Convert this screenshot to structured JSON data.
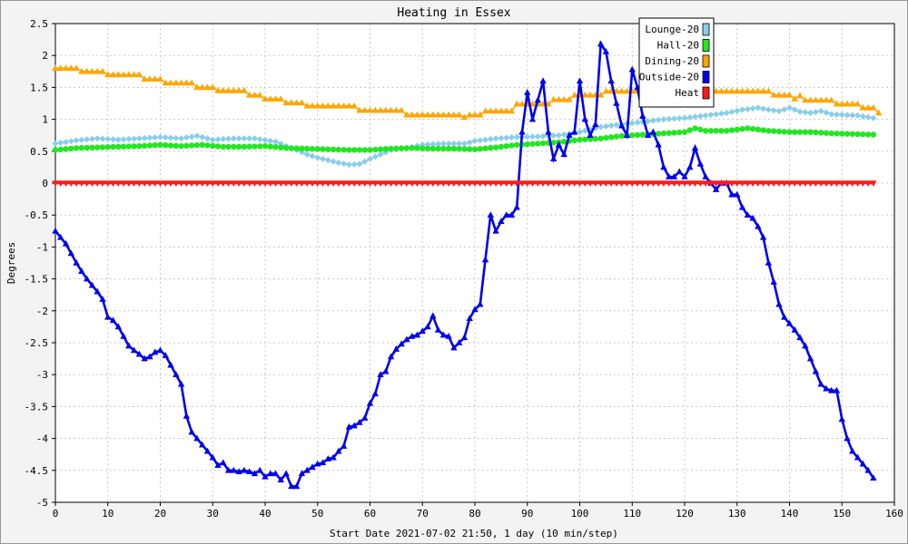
{
  "chart_data": {
    "type": "line",
    "title": "Heating in Essex",
    "xlabel": "Start Date 2021-07-02 21:50, 1 day (10 min/step)",
    "ylabel": "Degrees",
    "xlim": [
      0,
      160
    ],
    "ylim": [
      -5,
      2.5
    ],
    "x_ticks": [
      0,
      10,
      20,
      30,
      40,
      50,
      60,
      70,
      80,
      90,
      100,
      110,
      120,
      130,
      140,
      150,
      160
    ],
    "y_ticks": [
      -5,
      -4.5,
      -4,
      -3.5,
      -3,
      -2.5,
      -2,
      -1.5,
      -1,
      -0.5,
      0,
      0.5,
      1,
      1.5,
      2,
      2.5
    ],
    "grid": true,
    "legend_position": "top-right",
    "series": [
      {
        "name": "Lounge-20",
        "color": "#87ceeb",
        "marker": "diamond",
        "points": [
          [
            0,
            0.62
          ],
          [
            4,
            0.67
          ],
          [
            8,
            0.7
          ],
          [
            12,
            0.68
          ],
          [
            16,
            0.7
          ],
          [
            20,
            0.72
          ],
          [
            24,
            0.7
          ],
          [
            27,
            0.74
          ],
          [
            30,
            0.68
          ],
          [
            34,
            0.7
          ],
          [
            38,
            0.7
          ],
          [
            42,
            0.65
          ],
          [
            44,
            0.58
          ],
          [
            46,
            0.52
          ],
          [
            48,
            0.45
          ],
          [
            50,
            0.4
          ],
          [
            52,
            0.36
          ],
          [
            54,
            0.32
          ],
          [
            56,
            0.29
          ],
          [
            58,
            0.3
          ],
          [
            60,
            0.38
          ],
          [
            62,
            0.45
          ],
          [
            64,
            0.52
          ],
          [
            67,
            0.55
          ],
          [
            70,
            0.6
          ],
          [
            74,
            0.62
          ],
          [
            78,
            0.62
          ],
          [
            80,
            0.66
          ],
          [
            84,
            0.7
          ],
          [
            88,
            0.72
          ],
          [
            92,
            0.73
          ],
          [
            96,
            0.75
          ],
          [
            100,
            0.8
          ],
          [
            104,
            0.88
          ],
          [
            108,
            0.92
          ],
          [
            112,
            0.96
          ],
          [
            116,
            1.0
          ],
          [
            120,
            1.02
          ],
          [
            124,
            1.06
          ],
          [
            128,
            1.1
          ],
          [
            131,
            1.15
          ],
          [
            134,
            1.18
          ],
          [
            136,
            1.15
          ],
          [
            138,
            1.13
          ],
          [
            140,
            1.18
          ],
          [
            142,
            1.12
          ],
          [
            144,
            1.1
          ],
          [
            146,
            1.13
          ],
          [
            148,
            1.08
          ],
          [
            150,
            1.07
          ],
          [
            153,
            1.06
          ],
          [
            156,
            1.02
          ]
        ]
      },
      {
        "name": "Hall-20",
        "color": "#22e622",
        "marker": "circle",
        "points": [
          [
            0,
            0.52
          ],
          [
            4,
            0.55
          ],
          [
            8,
            0.56
          ],
          [
            12,
            0.57
          ],
          [
            16,
            0.58
          ],
          [
            20,
            0.6
          ],
          [
            24,
            0.58
          ],
          [
            28,
            0.6
          ],
          [
            32,
            0.57
          ],
          [
            36,
            0.57
          ],
          [
            40,
            0.58
          ],
          [
            44,
            0.55
          ],
          [
            48,
            0.54
          ],
          [
            52,
            0.53
          ],
          [
            56,
            0.52
          ],
          [
            60,
            0.52
          ],
          [
            64,
            0.54
          ],
          [
            68,
            0.55
          ],
          [
            72,
            0.54
          ],
          [
            76,
            0.54
          ],
          [
            80,
            0.53
          ],
          [
            84,
            0.56
          ],
          [
            88,
            0.6
          ],
          [
            92,
            0.62
          ],
          [
            96,
            0.64
          ],
          [
            100,
            0.68
          ],
          [
            104,
            0.7
          ],
          [
            108,
            0.74
          ],
          [
            112,
            0.76
          ],
          [
            116,
            0.78
          ],
          [
            120,
            0.8
          ],
          [
            122,
            0.86
          ],
          [
            124,
            0.82
          ],
          [
            128,
            0.82
          ],
          [
            132,
            0.86
          ],
          [
            136,
            0.82
          ],
          [
            140,
            0.8
          ],
          [
            144,
            0.8
          ],
          [
            148,
            0.78
          ],
          [
            152,
            0.77
          ],
          [
            156,
            0.76
          ]
        ]
      },
      {
        "name": "Dining-20",
        "color": "#ffa500",
        "marker": "triangle",
        "points": [
          [
            0,
            1.8
          ],
          [
            4,
            1.8
          ],
          [
            5,
            1.75
          ],
          [
            9,
            1.75
          ],
          [
            10,
            1.7
          ],
          [
            16,
            1.7
          ],
          [
            17,
            1.63
          ],
          [
            20,
            1.63
          ],
          [
            21,
            1.57
          ],
          [
            26,
            1.57
          ],
          [
            27,
            1.5
          ],
          [
            30,
            1.5
          ],
          [
            31,
            1.45
          ],
          [
            36,
            1.45
          ],
          [
            37,
            1.38
          ],
          [
            39,
            1.38
          ],
          [
            40,
            1.32
          ],
          [
            43,
            1.32
          ],
          [
            44,
            1.26
          ],
          [
            47,
            1.26
          ],
          [
            48,
            1.21
          ],
          [
            57,
            1.21
          ],
          [
            58,
            1.14
          ],
          [
            66,
            1.14
          ],
          [
            67,
            1.07
          ],
          [
            77,
            1.07
          ],
          [
            78,
            1.03
          ],
          [
            79,
            1.07
          ],
          [
            81,
            1.07
          ],
          [
            82,
            1.13
          ],
          [
            87,
            1.13
          ],
          [
            88,
            1.24
          ],
          [
            94,
            1.24
          ],
          [
            95,
            1.31
          ],
          [
            98,
            1.31
          ],
          [
            99,
            1.38
          ],
          [
            104,
            1.38
          ],
          [
            105,
            1.44
          ],
          [
            125,
            1.44
          ],
          [
            126,
            1.44
          ],
          [
            136,
            1.44
          ],
          [
            137,
            1.38
          ],
          [
            140,
            1.38
          ],
          [
            141,
            1.32
          ],
          [
            142,
            1.37
          ],
          [
            143,
            1.3
          ],
          [
            148,
            1.3
          ],
          [
            149,
            1.24
          ],
          [
            153,
            1.24
          ],
          [
            154,
            1.18
          ],
          [
            156,
            1.18
          ],
          [
            157,
            1.1
          ]
        ]
      },
      {
        "name": "Outside-20",
        "color": "#0000ee",
        "marker": "triangle",
        "points": [
          [
            0,
            -0.75
          ],
          [
            1,
            -0.85
          ],
          [
            2,
            -0.95
          ],
          [
            3,
            -1.1
          ],
          [
            4,
            -1.25
          ],
          [
            5,
            -1.38
          ],
          [
            6,
            -1.5
          ],
          [
            7,
            -1.6
          ],
          [
            8,
            -1.7
          ],
          [
            9,
            -1.82
          ],
          [
            10,
            -2.1
          ],
          [
            11,
            -2.15
          ],
          [
            12,
            -2.25
          ],
          [
            13,
            -2.4
          ],
          [
            14,
            -2.55
          ],
          [
            15,
            -2.62
          ],
          [
            16,
            -2.68
          ],
          [
            17,
            -2.75
          ],
          [
            18,
            -2.72
          ],
          [
            19,
            -2.65
          ],
          [
            20,
            -2.62
          ],
          [
            21,
            -2.7
          ],
          [
            22,
            -2.85
          ],
          [
            23,
            -3.0
          ],
          [
            24,
            -3.15
          ],
          [
            25,
            -3.65
          ],
          [
            26,
            -3.9
          ],
          [
            27,
            -4.0
          ],
          [
            28,
            -4.1
          ],
          [
            29,
            -4.2
          ],
          [
            30,
            -4.3
          ],
          [
            31,
            -4.42
          ],
          [
            32,
            -4.38
          ],
          [
            33,
            -4.5
          ],
          [
            34,
            -4.5
          ],
          [
            35,
            -4.52
          ],
          [
            36,
            -4.5
          ],
          [
            37,
            -4.52
          ],
          [
            38,
            -4.55
          ],
          [
            39,
            -4.5
          ],
          [
            40,
            -4.6
          ],
          [
            41,
            -4.55
          ],
          [
            42,
            -4.55
          ],
          [
            43,
            -4.65
          ],
          [
            44,
            -4.55
          ],
          [
            45,
            -4.75
          ],
          [
            46,
            -4.75
          ],
          [
            47,
            -4.55
          ],
          [
            48,
            -4.5
          ],
          [
            49,
            -4.45
          ],
          [
            50,
            -4.4
          ],
          [
            51,
            -4.38
          ],
          [
            52,
            -4.32
          ],
          [
            53,
            -4.3
          ],
          [
            54,
            -4.2
          ],
          [
            55,
            -4.12
          ],
          [
            56,
            -3.82
          ],
          [
            57,
            -3.8
          ],
          [
            58,
            -3.75
          ],
          [
            59,
            -3.68
          ],
          [
            60,
            -3.45
          ],
          [
            61,
            -3.3
          ],
          [
            62,
            -3.0
          ],
          [
            63,
            -2.95
          ],
          [
            64,
            -2.72
          ],
          [
            65,
            -2.6
          ],
          [
            66,
            -2.52
          ],
          [
            67,
            -2.45
          ],
          [
            68,
            -2.4
          ],
          [
            69,
            -2.38
          ],
          [
            70,
            -2.32
          ],
          [
            71,
            -2.25
          ],
          [
            72,
            -2.08
          ],
          [
            73,
            -2.3
          ],
          [
            74,
            -2.38
          ],
          [
            75,
            -2.4
          ],
          [
            76,
            -2.58
          ],
          [
            77,
            -2.5
          ],
          [
            78,
            -2.42
          ],
          [
            79,
            -2.12
          ],
          [
            80,
            -1.98
          ],
          [
            81,
            -1.9
          ],
          [
            82,
            -1.2
          ],
          [
            83,
            -0.5
          ],
          [
            84,
            -0.75
          ],
          [
            85,
            -0.6
          ],
          [
            86,
            -0.5
          ],
          [
            87,
            -0.5
          ],
          [
            88,
            -0.38
          ],
          [
            89,
            0.8
          ],
          [
            90,
            1.42
          ],
          [
            91,
            1.0
          ],
          [
            92,
            1.3
          ],
          [
            93,
            1.6
          ],
          [
            94,
            0.8
          ],
          [
            95,
            0.38
          ],
          [
            96,
            0.6
          ],
          [
            97,
            0.45
          ],
          [
            98,
            0.75
          ],
          [
            99,
            0.8
          ],
          [
            100,
            1.6
          ],
          [
            101,
            1.0
          ],
          [
            102,
            0.75
          ],
          [
            103,
            0.92
          ],
          [
            104,
            2.18
          ],
          [
            105,
            2.06
          ],
          [
            106,
            1.6
          ],
          [
            107,
            1.25
          ],
          [
            108,
            0.9
          ],
          [
            109,
            0.75
          ],
          [
            110,
            1.78
          ],
          [
            111,
            1.5
          ],
          [
            112,
            1.05
          ],
          [
            113,
            0.75
          ],
          [
            114,
            0.8
          ],
          [
            115,
            0.6
          ],
          [
            116,
            0.25
          ],
          [
            117,
            0.1
          ],
          [
            118,
            0.1
          ],
          [
            119,
            0.18
          ],
          [
            120,
            0.1
          ],
          [
            121,
            0.25
          ],
          [
            122,
            0.55
          ],
          [
            123,
            0.3
          ],
          [
            124,
            0.1
          ],
          [
            125,
            0.0
          ],
          [
            126,
            -0.1
          ],
          [
            127,
            0.0
          ],
          [
            128,
            0.0
          ],
          [
            129,
            -0.18
          ],
          [
            130,
            -0.18
          ],
          [
            131,
            -0.38
          ],
          [
            132,
            -0.5
          ],
          [
            133,
            -0.55
          ],
          [
            134,
            -0.68
          ],
          [
            135,
            -0.85
          ],
          [
            136,
            -1.25
          ],
          [
            137,
            -1.55
          ],
          [
            138,
            -1.9
          ],
          [
            139,
            -2.1
          ],
          [
            140,
            -2.2
          ],
          [
            141,
            -2.3
          ],
          [
            142,
            -2.42
          ],
          [
            143,
            -2.55
          ],
          [
            144,
            -2.75
          ],
          [
            145,
            -2.95
          ],
          [
            146,
            -3.15
          ],
          [
            147,
            -3.22
          ],
          [
            148,
            -3.25
          ],
          [
            149,
            -3.25
          ],
          [
            150,
            -3.7
          ],
          [
            151,
            -4.0
          ],
          [
            152,
            -4.2
          ],
          [
            153,
            -4.3
          ],
          [
            154,
            -4.4
          ],
          [
            155,
            -4.5
          ],
          [
            156,
            -4.62
          ]
        ]
      },
      {
        "name": "Heat",
        "color": "#ff1a1a",
        "marker": "triangle-down",
        "points": [
          [
            0,
            0
          ],
          [
            156,
            0
          ]
        ]
      }
    ]
  }
}
